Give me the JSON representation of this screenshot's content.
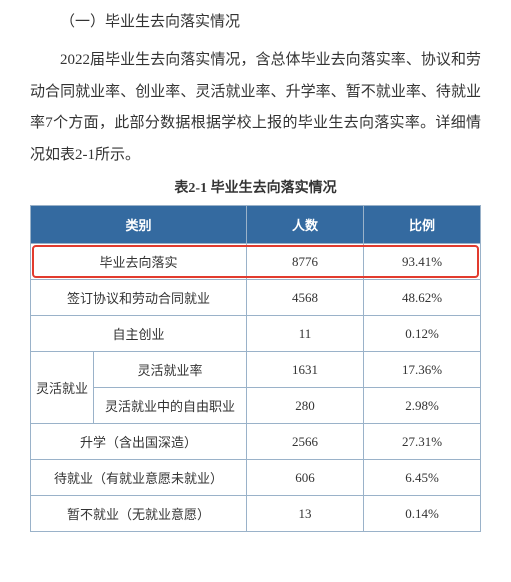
{
  "section_title": "（一）毕业生去向落实情况",
  "paragraph": "2022届毕业生去向落实情况，含总体毕业去向落实率、协议和劳动合同就业率、创业率、灵活就业率、升学率、暂不就业率、待就业率7个方面，此部分数据根据学校上报的毕业生去向落实率。详细情况如表2-1所示。",
  "table_caption": "表2-1  毕业生去向落实情况",
  "columns": [
    "类别",
    "人数",
    "比例"
  ],
  "rows": [
    {
      "cat": "毕业去向落实",
      "num": "8776",
      "pct": "93.41%",
      "highlight": true,
      "colspan": 2
    },
    {
      "cat": "签订协议和劳动合同就业",
      "num": "4568",
      "pct": "48.62%",
      "colspan": 2
    },
    {
      "cat": "自主创业",
      "num": "11",
      "pct": "0.12%",
      "colspan": 2
    },
    {
      "group": "灵活就业",
      "cat": "灵活就业率",
      "num": "1631",
      "pct": "17.36%",
      "rowspan": 2
    },
    {
      "cat": "灵活就业中的自由职业",
      "num": "280",
      "pct": "2.98%"
    },
    {
      "cat": "升学（含出国深造）",
      "num": "2566",
      "pct": "27.31%",
      "colspan": 2
    },
    {
      "cat": "待就业（有就业意愿未就业）",
      "num": "606",
      "pct": "6.45%",
      "colspan": 2
    },
    {
      "cat": "暂不就业（无就业意愿）",
      "num": "13",
      "pct": "0.14%",
      "colspan": 2
    }
  ],
  "styling": {
    "header_bg": "#346aa0",
    "header_fg": "#ffffff",
    "border_color": "#9ab2c9",
    "highlight_border": "#e23b2e",
    "body_fontsize": 15,
    "table_fontsize": 13
  }
}
